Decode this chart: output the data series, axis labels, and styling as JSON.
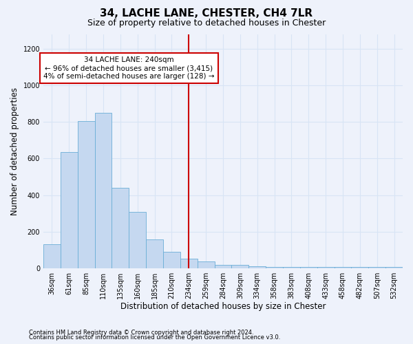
{
  "title": "34, LACHE LANE, CHESTER, CH4 7LR",
  "subtitle": "Size of property relative to detached houses in Chester",
  "xlabel": "Distribution of detached houses by size in Chester",
  "ylabel": "Number of detached properties",
  "footnote1": "Contains HM Land Registry data © Crown copyright and database right 2024.",
  "footnote2": "Contains public sector information licensed under the Open Government Licence v3.0.",
  "bar_labels": [
    "36sqm",
    "61sqm",
    "85sqm",
    "110sqm",
    "135sqm",
    "160sqm",
    "185sqm",
    "210sqm",
    "234sqm",
    "259sqm",
    "284sqm",
    "309sqm",
    "334sqm",
    "358sqm",
    "383sqm",
    "408sqm",
    "433sqm",
    "458sqm",
    "482sqm",
    "507sqm",
    "532sqm"
  ],
  "bar_heights": [
    130,
    637,
    805,
    850,
    440,
    307,
    157,
    90,
    50,
    37,
    18,
    18,
    10,
    8,
    8,
    8,
    8,
    8,
    8,
    8,
    8
  ],
  "bar_color": "#c5d8f0",
  "bar_edge_color": "#6aaed6",
  "vline_index": 8,
  "vline_color": "#cc0000",
  "annotation_text": "34 LACHE LANE: 240sqm\n← 96% of detached houses are smaller (3,415)\n4% of semi-detached houses are larger (128) →",
  "annotation_box_color": "#ffffff",
  "annotation_box_edge": "#cc0000",
  "ylim": [
    0,
    1280
  ],
  "yticks": [
    0,
    200,
    400,
    600,
    800,
    1000,
    1200
  ],
  "background_color": "#eef2fb",
  "grid_color": "#d8e4f5",
  "title_fontsize": 11,
  "subtitle_fontsize": 9,
  "xlabel_fontsize": 8.5,
  "ylabel_fontsize": 8.5,
  "tick_fontsize": 7,
  "annotation_fontsize": 7.5
}
